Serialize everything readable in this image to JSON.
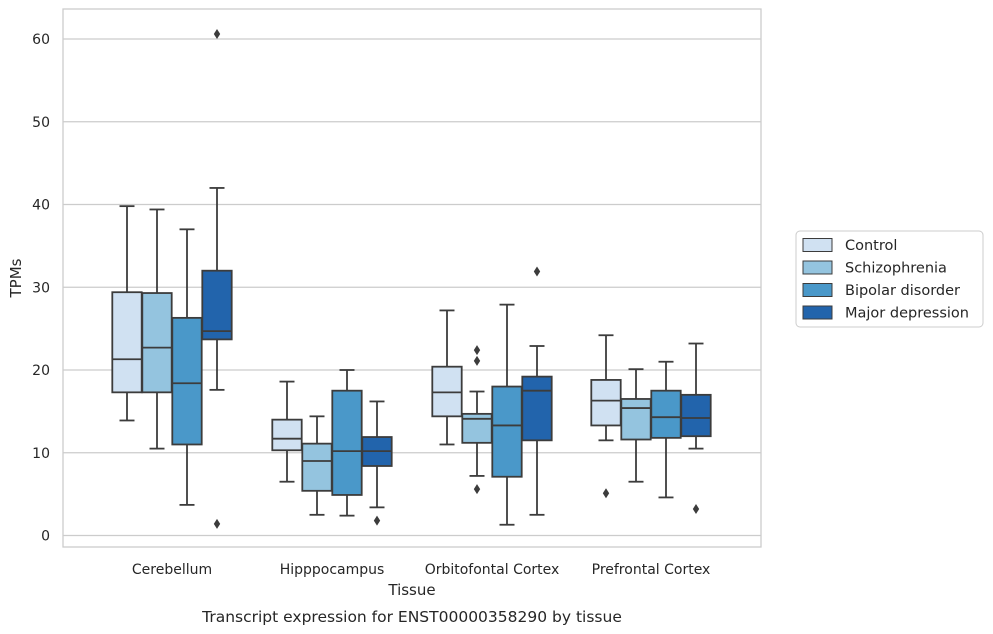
{
  "chart_data": {
    "type": "box",
    "title": "",
    "caption": "Transcript expression for ENST00000358290 by tissue",
    "xlabel": "Tissue",
    "ylabel": "TPMs",
    "ylim": [
      -1.5,
      63.5
    ],
    "yticks": [
      0,
      10,
      20,
      30,
      40,
      50,
      60
    ],
    "grid": true,
    "legend_position": "right",
    "categories": [
      "Cerebellum",
      "Hipppocampus",
      "Orbitofontal Cortex",
      "Prefrontal Cortex"
    ],
    "series": [
      {
        "name": "Control",
        "color": "#d0e1f2",
        "boxes": [
          {
            "whislo": 13.9,
            "q1": 17.3,
            "med": 21.3,
            "q3": 29.4,
            "whishi": 39.8,
            "fliers": []
          },
          {
            "whislo": 6.5,
            "q1": 10.3,
            "med": 11.7,
            "q3": 14.0,
            "whishi": 18.6,
            "fliers": []
          },
          {
            "whislo": 11.0,
            "q1": 14.4,
            "med": 17.3,
            "q3": 20.4,
            "whishi": 27.2,
            "fliers": []
          },
          {
            "whislo": 11.5,
            "q1": 13.3,
            "med": 16.3,
            "q3": 18.8,
            "whishi": 24.2,
            "fliers": [
              5.1
            ]
          }
        ]
      },
      {
        "name": "Schizophrenia",
        "color": "#94c4df",
        "boxes": [
          {
            "whislo": 10.5,
            "q1": 17.3,
            "med": 22.7,
            "q3": 29.3,
            "whishi": 39.4,
            "fliers": []
          },
          {
            "whislo": 2.5,
            "q1": 5.4,
            "med": 9.0,
            "q3": 11.1,
            "whishi": 14.4,
            "fliers": []
          },
          {
            "whislo": 7.2,
            "q1": 11.2,
            "med": 14.1,
            "q3": 14.7,
            "whishi": 17.4,
            "fliers": [
              22.4,
              21.1,
              5.6
            ]
          },
          {
            "whislo": 6.5,
            "q1": 11.6,
            "med": 15.4,
            "q3": 16.5,
            "whishi": 20.1,
            "fliers": []
          }
        ]
      },
      {
        "name": "Bipolar disorder",
        "color": "#4a98c9",
        "boxes": [
          {
            "whislo": 3.7,
            "q1": 11.0,
            "med": 18.4,
            "q3": 26.3,
            "whishi": 37.0,
            "fliers": []
          },
          {
            "whislo": 2.4,
            "q1": 4.9,
            "med": 10.2,
            "q3": 17.5,
            "whishi": 20.0,
            "fliers": []
          },
          {
            "whislo": 1.3,
            "q1": 7.1,
            "med": 13.3,
            "q3": 18.0,
            "whishi": 27.9,
            "fliers": []
          },
          {
            "whislo": 4.6,
            "q1": 11.8,
            "med": 14.3,
            "q3": 17.5,
            "whishi": 21.0,
            "fliers": []
          }
        ]
      },
      {
        "name": "Major depression",
        "color": "#2264ac",
        "boxes": [
          {
            "whislo": 17.6,
            "q1": 23.7,
            "med": 24.7,
            "q3": 32.0,
            "whishi": 42.0,
            "fliers": [
              60.6,
              1.4
            ]
          },
          {
            "whislo": 3.4,
            "q1": 8.4,
            "med": 10.2,
            "q3": 11.9,
            "whishi": 16.2,
            "fliers": [
              1.8
            ]
          },
          {
            "whislo": 2.5,
            "q1": 11.5,
            "med": 17.5,
            "q3": 19.2,
            "whishi": 22.9,
            "fliers": [
              31.9
            ]
          },
          {
            "whislo": 10.5,
            "q1": 12.0,
            "med": 14.2,
            "q3": 17.0,
            "whishi": 23.2,
            "fliers": [
              3.2
            ]
          }
        ]
      }
    ]
  }
}
